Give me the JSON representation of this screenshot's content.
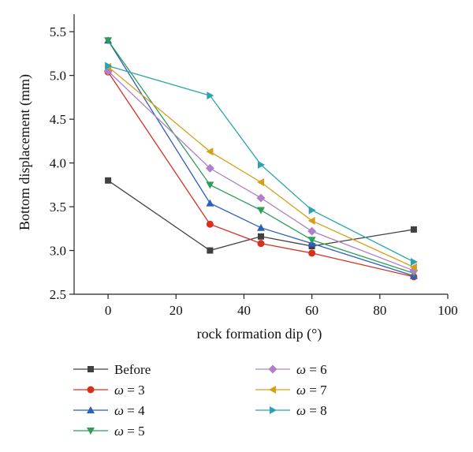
{
  "chart_data": {
    "type": "line",
    "xlabel": "rock formation dip (°)",
    "ylabel": "Bottom displacement (mm)",
    "xlim": [
      -10,
      100
    ],
    "ylim": [
      2.5,
      5.7
    ],
    "xticks": [
      0,
      20,
      40,
      60,
      80,
      100
    ],
    "yticks": [
      2.5,
      3.0,
      3.5,
      4.0,
      4.5,
      5.0,
      5.5
    ],
    "ytick_labels": [
      "2.5",
      "3.0",
      "3.5",
      "4.0",
      "4.5",
      "5.0",
      "5.5"
    ],
    "grid": false,
    "legend_position": "bottom",
    "x": [
      0,
      30,
      45,
      60,
      90
    ],
    "series": [
      {
        "name": "Before",
        "prefix": "",
        "value": "Before",
        "color": "#404040",
        "marker": "square",
        "values": [
          3.8,
          3.0,
          3.16,
          3.05,
          3.24
        ]
      },
      {
        "name": "ω = 3",
        "prefix": "ω",
        "value": " = 3",
        "color": "#d7301f",
        "marker": "circle",
        "values": [
          5.04,
          3.3,
          3.08,
          2.97,
          2.7
        ]
      },
      {
        "name": "ω = 4",
        "prefix": "ω",
        "value": " = 4",
        "color": "#2c5fbf",
        "marker": "triangle-up",
        "values": [
          5.4,
          3.54,
          3.26,
          3.08,
          2.71
        ]
      },
      {
        "name": "ω = 5",
        "prefix": "ω",
        "value": " = 5",
        "color": "#2e9e57",
        "marker": "triangle-down",
        "values": [
          5.4,
          3.75,
          3.46,
          3.12,
          2.74
        ]
      },
      {
        "name": "ω = 6",
        "prefix": "ω",
        "value": " = 6",
        "color": "#b07fc9",
        "marker": "diamond",
        "values": [
          5.05,
          3.94,
          3.6,
          3.22,
          2.77
        ]
      },
      {
        "name": "ω = 7",
        "prefix": "ω",
        "value": " = 7",
        "color": "#d4a017",
        "marker": "triangle-left",
        "values": [
          5.1,
          4.13,
          3.78,
          3.34,
          2.81
        ]
      },
      {
        "name": "ω = 8",
        "prefix": "ω",
        "value": " = 8",
        "color": "#2aa3b2",
        "marker": "triangle-right",
        "values": [
          5.11,
          4.77,
          3.98,
          3.46,
          2.87
        ]
      }
    ]
  }
}
